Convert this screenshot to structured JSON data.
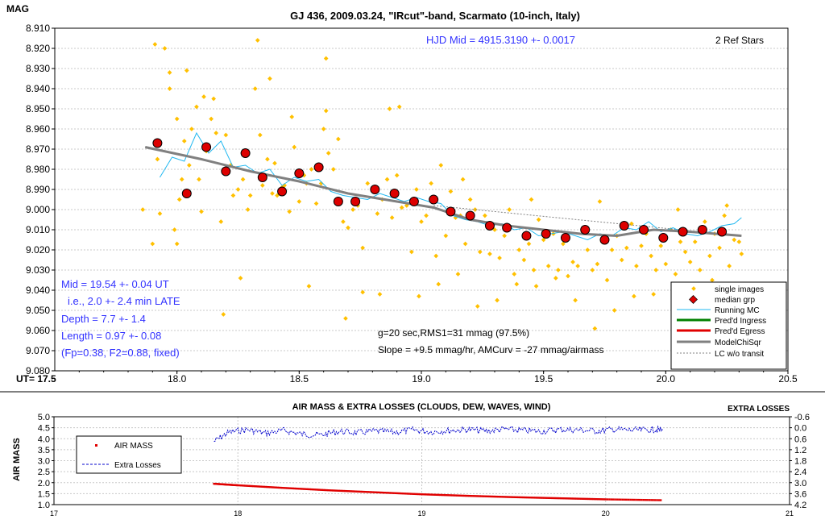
{
  "colors": {
    "single": "#ffc000",
    "median": "#dd0000",
    "running": "#22b8f0",
    "ingress": "#008000",
    "egress": "#e00000",
    "model": "#808080",
    "lc_notransit": "#808080",
    "airmass": "#e00000",
    "extra": "#0000cc",
    "annot_blue": "#3333ff"
  },
  "chart_data": [
    {
      "type": "scatter",
      "title": "GJ 436, 2009.03.24, \"IRcut\"-band, Scarmato (10-inch, Italy)",
      "ylabel": "MAG",
      "xlabel": "UT= 17.5",
      "xlim": [
        17.5,
        20.5
      ],
      "ylim": [
        8.91,
        9.08
      ],
      "y_inverted": true,
      "x_ticks": [
        "18.0",
        "18.5",
        "19.0",
        "19.5",
        "20.0",
        "20.5"
      ],
      "y_ticks": [
        "8.910",
        "8.920",
        "8.930",
        "8.940",
        "8.950",
        "8.960",
        "8.970",
        "8.980",
        "8.990",
        "9.000",
        "9.010",
        "9.020",
        "9.030",
        "9.040",
        "9.050",
        "9.060",
        "9.070",
        "9.080"
      ],
      "annotations": {
        "hjd": "HJD Mid = 4915.3190 +- 0.0017",
        "refstars": "2 Ref Stars",
        "mid": "Mid = 19.54 +- 0.04 UT",
        "late": "i.e., 2.0 +- 2.4 min LATE",
        "depth": "Depth = 7.7 +- 1.4",
        "length": "Length = 0.97 +- 0.08",
        "fp": "(Fp=0.38, F2=0.88, fixed)",
        "rms": "g=20 sec,RMS1=31 mmag (97.5%)",
        "slope": "Slope = +9.5 mmag/hr, AMCurv = -27 mmag/airmass"
      },
      "legend_position": "bottom-right",
      "legend": [
        {
          "label": "single images",
          "style": "dot"
        },
        {
          "label": "median grp",
          "style": "diamond"
        },
        {
          "label": "Running MC",
          "style": "line-thin"
        },
        {
          "label": "Pred'd Ingress",
          "style": "line-thick"
        },
        {
          "label": "Pred'd Egress",
          "style": "line-thick"
        },
        {
          "label": "ModelChiSqr",
          "style": "line-thick"
        },
        {
          "label": "LC w/o transit",
          "style": "line-dashed"
        }
      ],
      "series": [
        {
          "name": "median grp",
          "x": [
            17.92,
            18.04,
            18.12,
            18.2,
            18.28,
            18.35,
            18.43,
            18.5,
            18.58,
            18.66,
            18.73,
            18.81,
            18.89,
            18.97,
            19.05,
            19.12,
            19.2,
            19.28,
            19.35,
            19.43,
            19.51,
            19.59,
            19.67,
            19.75,
            19.83,
            19.91,
            19.99,
            20.07,
            20.15,
            20.23
          ],
          "y": [
            8.967,
            8.992,
            8.969,
            8.981,
            8.972,
            8.984,
            8.991,
            8.982,
            8.979,
            8.996,
            8.996,
            8.99,
            8.992,
            8.996,
            8.995,
            9.001,
            9.003,
            9.008,
            9.009,
            9.013,
            9.012,
            9.014,
            9.01,
            9.015,
            9.008,
            9.01,
            9.014,
            9.011,
            9.01,
            9.011
          ]
        },
        {
          "name": "ModelChiSqr",
          "x": [
            17.87,
            18.1,
            18.3,
            18.5,
            18.7,
            18.9,
            19.05,
            19.2,
            19.35,
            19.5,
            19.65,
            19.8,
            19.95,
            20.1,
            20.31
          ],
          "y": [
            8.969,
            8.975,
            8.981,
            8.986,
            8.992,
            8.996,
            8.999,
            9.005,
            9.008,
            9.01,
            9.012,
            9.013,
            9.01,
            9.011,
            9.013
          ]
        },
        {
          "name": "LC w/o transit",
          "x": [
            19.05,
            20.31
          ],
          "y": [
            8.998,
            9.013
          ]
        },
        {
          "name": "Running MC",
          "x": [
            17.93,
            17.98,
            18.03,
            18.08,
            18.13,
            18.18,
            18.23,
            18.28,
            18.33,
            18.38,
            18.43,
            18.48,
            18.53,
            18.58,
            18.63,
            18.68,
            18.73,
            18.78,
            18.83,
            18.88,
            18.93,
            18.98,
            19.03,
            19.08,
            19.13,
            19.18,
            19.23,
            19.28,
            19.33,
            19.38,
            19.43,
            19.48,
            19.53,
            19.58,
            19.63,
            19.68,
            19.73,
            19.78,
            19.83,
            19.88,
            19.93,
            19.98,
            20.03,
            20.08,
            20.13,
            20.18,
            20.23,
            20.28,
            20.31
          ],
          "y": [
            8.984,
            8.974,
            8.976,
            8.962,
            8.972,
            8.966,
            8.979,
            8.978,
            8.982,
            8.98,
            8.988,
            8.984,
            8.986,
            8.985,
            8.991,
            8.993,
            8.994,
            8.995,
            8.992,
            8.994,
            8.996,
            8.994,
            8.996,
            8.997,
            9.003,
            9.005,
            9.006,
            9.008,
            9.007,
            9.01,
            9.009,
            9.013,
            9.012,
            9.011,
            9.013,
            9.015,
            9.012,
            9.013,
            9.009,
            9.01,
            9.006,
            9.011,
            9.009,
            9.012,
            9.013,
            9.011,
            9.008,
            9.007,
            9.004
          ]
        },
        {
          "name": "single images",
          "x": [
            17.86,
            17.9,
            17.92,
            17.93,
            17.95,
            17.97,
            17.99,
            18.0,
            18.01,
            18.02,
            18.03,
            18.05,
            18.06,
            18.08,
            18.09,
            18.1,
            18.12,
            18.14,
            18.16,
            18.18,
            18.2,
            18.22,
            18.23,
            18.25,
            18.27,
            18.29,
            18.3,
            18.32,
            18.34,
            18.35,
            18.37,
            18.39,
            18.41,
            18.43,
            18.44,
            18.46,
            18.48,
            18.5,
            18.52,
            18.53,
            18.55,
            18.57,
            18.59,
            18.61,
            18.62,
            18.64,
            18.66,
            18.68,
            18.7,
            18.72,
            18.74,
            18.76,
            18.78,
            18.8,
            18.82,
            18.84,
            18.86,
            18.88,
            18.9,
            18.92,
            18.94,
            18.96,
            18.98,
            19.0,
            19.02,
            19.04,
            19.06,
            19.08,
            19.1,
            19.12,
            19.14,
            19.16,
            19.18,
            19.2,
            19.22,
            19.24,
            19.26,
            19.28,
            19.3,
            19.32,
            19.34,
            19.36,
            19.38,
            19.4,
            19.42,
            19.44,
            19.46,
            19.48,
            19.5,
            19.52,
            19.54,
            19.56,
            19.58,
            19.6,
            19.62,
            19.64,
            19.66,
            19.68,
            19.7,
            19.72,
            19.74,
            19.76,
            19.78,
            19.8,
            19.82,
            19.84,
            19.86,
            19.88,
            19.9,
            19.92,
            19.94,
            19.96,
            19.98,
            20.0,
            20.02,
            20.04,
            20.06,
            20.08,
            20.1,
            20.12,
            20.14,
            20.16,
            20.18,
            20.2,
            20.22,
            20.24,
            20.26,
            20.28,
            20.3,
            20.31,
            17.91,
            17.97,
            18.04,
            18.11,
            18.19,
            18.26,
            18.33,
            18.4,
            18.47,
            18.54,
            18.61,
            18.69,
            18.76,
            18.83,
            18.91,
            18.99,
            19.07,
            19.15,
            19.23,
            19.31,
            19.39,
            19.47,
            19.55,
            19.63,
            19.71,
            19.79,
            19.87,
            19.95,
            20.03,
            20.11,
            20.19,
            20.27,
            18.0,
            18.15,
            18.38,
            18.6,
            18.87,
            19.17,
            19.45,
            19.73,
            20.05,
            20.25
          ],
          "y": [
            9.0,
            9.017,
            8.975,
            9.002,
            8.92,
            8.932,
            9.01,
            9.017,
            8.995,
            8.985,
            8.966,
            8.978,
            8.96,
            8.949,
            8.985,
            9.001,
            8.971,
            8.955,
            8.962,
            9.006,
            8.963,
            8.978,
            8.993,
            8.99,
            8.985,
            9.0,
            8.993,
            8.94,
            8.963,
            8.988,
            8.975,
            8.992,
            8.993,
            8.989,
            8.988,
            9.001,
            8.969,
            8.996,
            8.983,
            8.987,
            8.98,
            8.997,
            8.987,
            8.951,
            8.972,
            8.98,
            8.965,
            9.006,
            9.009,
            9.0,
            8.998,
            9.019,
            8.987,
            8.99,
            9.002,
            8.995,
            8.985,
            9.004,
            8.983,
            8.999,
            8.998,
            9.021,
            8.99,
            9.006,
            9.003,
            8.987,
            9.023,
            8.978,
            9.013,
            8.991,
            9.004,
            9.003,
            9.017,
            8.995,
            9.0,
            9.021,
            9.003,
            9.022,
            9.01,
            9.024,
            9.013,
            9.0,
            9.032,
            9.02,
            9.025,
            9.017,
            9.03,
            9.005,
            9.015,
            9.028,
            9.012,
            9.03,
            9.017,
            9.033,
            9.026,
            9.028,
            9.011,
            9.02,
            9.03,
            9.027,
            9.016,
            9.035,
            9.02,
            9.013,
            9.025,
            9.019,
            9.007,
            9.028,
            9.018,
            9.012,
            9.023,
            9.03,
            9.018,
            9.027,
            9.01,
            9.032,
            9.016,
            9.021,
            9.026,
            9.016,
            9.03,
            9.006,
            9.023,
            9.012,
            9.019,
            9.003,
            9.028,
            9.015,
            9.016,
            9.022,
            8.918,
            8.94,
            8.931,
            8.944,
            9.052,
            9.034,
            8.916,
            8.977,
            8.954,
            9.038,
            8.925,
            9.054,
            9.041,
            9.042,
            8.949,
            9.043,
            9.037,
            9.032,
            9.048,
            9.045,
            9.037,
            9.038,
            9.034,
            9.045,
            9.059,
            9.05,
            9.043,
            9.042,
            9.041,
            9.038,
            9.035,
            9.04,
            8.955,
            8.945,
            8.935,
            8.96,
            8.95,
            8.985,
            8.995,
            8.996,
            9.0,
            8.998
          ]
        }
      ]
    },
    {
      "type": "scatter",
      "title": "AIR MASS & EXTRA LOSSES (CLOUDS, DEW, WAVES, WIND)",
      "ylabel": "AIR MASS",
      "y2label": "EXTRA LOSSES",
      "xlim": [
        17,
        21
      ],
      "ylim": [
        1.0,
        5.0
      ],
      "y2lim": [
        -0.6,
        4.2
      ],
      "y2_inverted": true,
      "x_ticks": [
        "17",
        "18",
        "19",
        "20",
        "21"
      ],
      "y_ticks": [
        "1.0",
        "1.5",
        "2.0",
        "2.5",
        "3.0",
        "3.5",
        "4.0",
        "4.5",
        "5.0"
      ],
      "y2_ticks": [
        "-0.6",
        "0.0",
        "0.6",
        "1.2",
        "1.8",
        "2.4",
        "3.0",
        "3.6",
        "4.2"
      ],
      "legend_position": "top-left",
      "legend": [
        {
          "label": "AIR MASS",
          "style": "dot"
        },
        {
          "label": "Extra Losses",
          "style": "dashed"
        }
      ],
      "series": [
        {
          "name": "AIR MASS",
          "x": [
            17.87,
            18.0,
            18.25,
            18.5,
            18.75,
            19.0,
            19.25,
            19.5,
            19.75,
            20.0,
            20.31
          ],
          "y": [
            1.95,
            1.88,
            1.76,
            1.65,
            1.56,
            1.47,
            1.4,
            1.34,
            1.29,
            1.24,
            1.2
          ]
        },
        {
          "name": "Extra Losses",
          "x": [
            17.87,
            17.95,
            18.05,
            18.15,
            18.25,
            18.35,
            18.45,
            18.55,
            18.65,
            18.75,
            18.85,
            18.95,
            19.05,
            19.15,
            19.25,
            19.35,
            19.45,
            19.55,
            19.65,
            19.75,
            19.85,
            19.95,
            20.05,
            20.15,
            20.25,
            20.31
          ],
          "y": [
            0.75,
            0.25,
            0.1,
            0.3,
            0.15,
            0.35,
            0.4,
            0.2,
            0.28,
            0.18,
            0.25,
            0.12,
            0.22,
            0.15,
            0.1,
            0.18,
            0.08,
            0.15,
            0.2,
            0.1,
            0.12,
            0.18,
            0.09,
            0.14,
            0.1,
            0.12
          ]
        }
      ]
    }
  ]
}
